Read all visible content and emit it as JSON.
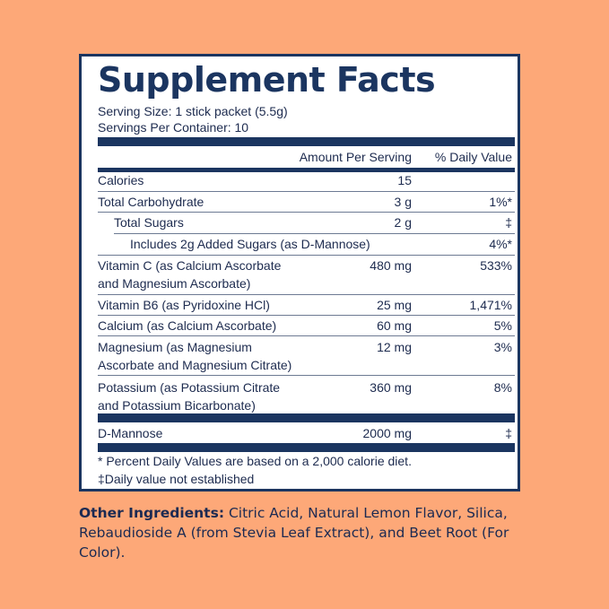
{
  "facts": {
    "title": "Supplement Facts",
    "serving_size": "Serving Size: 1 stick packet (5.5g)",
    "servings_per_container": "Servings Per Container: 10",
    "header_amount": "Amount Per Serving",
    "header_dv": "% Daily Value",
    "rows": [
      {
        "name": "Calories",
        "amount": "15",
        "dv": ""
      },
      {
        "name": "Total Carbohydrate",
        "amount": "3 g",
        "dv": "1%*"
      },
      {
        "name": "Total Sugars",
        "amount": "2 g",
        "dv": "‡"
      },
      {
        "name": "Includes 2g Added Sugars (as D-Mannose)",
        "amount": "",
        "dv": "4%*"
      },
      {
        "name_line1": "Vitamin C (as Calcium Ascorbate",
        "name_line2": "and Magnesium Ascorbate)",
        "amount": "480 mg",
        "dv": "533%"
      },
      {
        "name": "Vitamin B6 (as Pyridoxine HCl)",
        "amount": "25 mg",
        "dv": "1,471%"
      },
      {
        "name": "Calcium (as Calcium Ascorbate)",
        "amount": "60 mg",
        "dv": "5%"
      },
      {
        "name_line1": "Magnesium (as Magnesium",
        "name_line2": "Ascorbate and Magnesium Citrate)",
        "amount": "12 mg",
        "dv": "3%"
      },
      {
        "name_line1": "Potassium (as Potassium Citrate",
        "name_line2": "and Potassium Bicarbonate)",
        "amount": "360 mg",
        "dv": "8%"
      },
      {
        "name": "D-Mannose",
        "amount": "2000 mg",
        "dv": "‡"
      }
    ],
    "footnote_1": "* Percent Daily Values are based on a 2,000 calorie diet.",
    "footnote_2": "‡Daily value not established"
  },
  "other_ingredients": {
    "label": "Other Ingredients:",
    "text": "Citric Acid, Natural Lemon Flavor, Silica, Rebaudioside A (from Stevia Leaf Extract), and Beet Root (For Color)."
  },
  "colors": {
    "background": "#FDA878",
    "navy": "#1b3560"
  }
}
